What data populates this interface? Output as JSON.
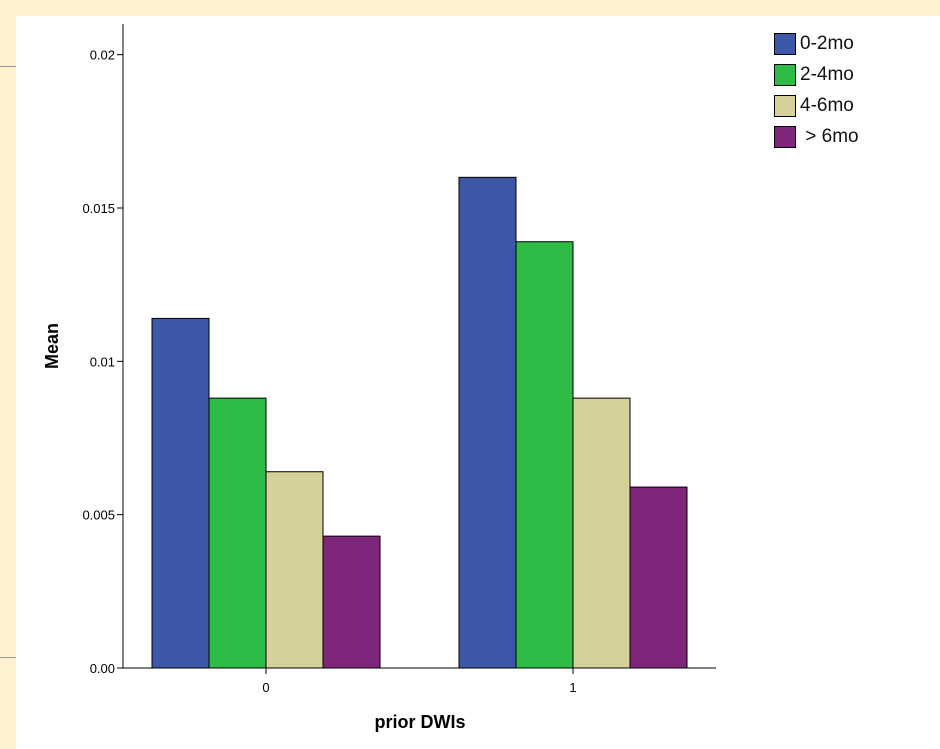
{
  "chart_data": {
    "type": "bar",
    "title": "",
    "xlabel": "prior DWIs",
    "ylabel": "Mean",
    "categories": [
      "0",
      "1"
    ],
    "series": [
      {
        "name": "0-2mo",
        "color": "#3e58a9",
        "values": [
          0.0114,
          0.016
        ]
      },
      {
        "name": "2-4mo",
        "color": "#2ebc47",
        "values": [
          0.0088,
          0.0139
        ]
      },
      {
        "name": "4-6mo",
        "color": "#d6d19a",
        "values": [
          0.0064,
          0.0088
        ]
      },
      {
        "name": " > 6mo",
        "color": "#7f267b",
        "values": [
          0.0043,
          0.0059
        ]
      }
    ],
    "ylim": [
      0,
      0.021
    ],
    "yticks": [
      {
        "value": 0.0,
        "label": "0.00"
      },
      {
        "value": 0.005,
        "label": "0.005"
      },
      {
        "value": 0.01,
        "label": "0.01"
      },
      {
        "value": 0.015,
        "label": "0.015"
      },
      {
        "value": 0.02,
        "label": "0.02"
      }
    ],
    "grid": false,
    "legend_position": "top-right"
  }
}
